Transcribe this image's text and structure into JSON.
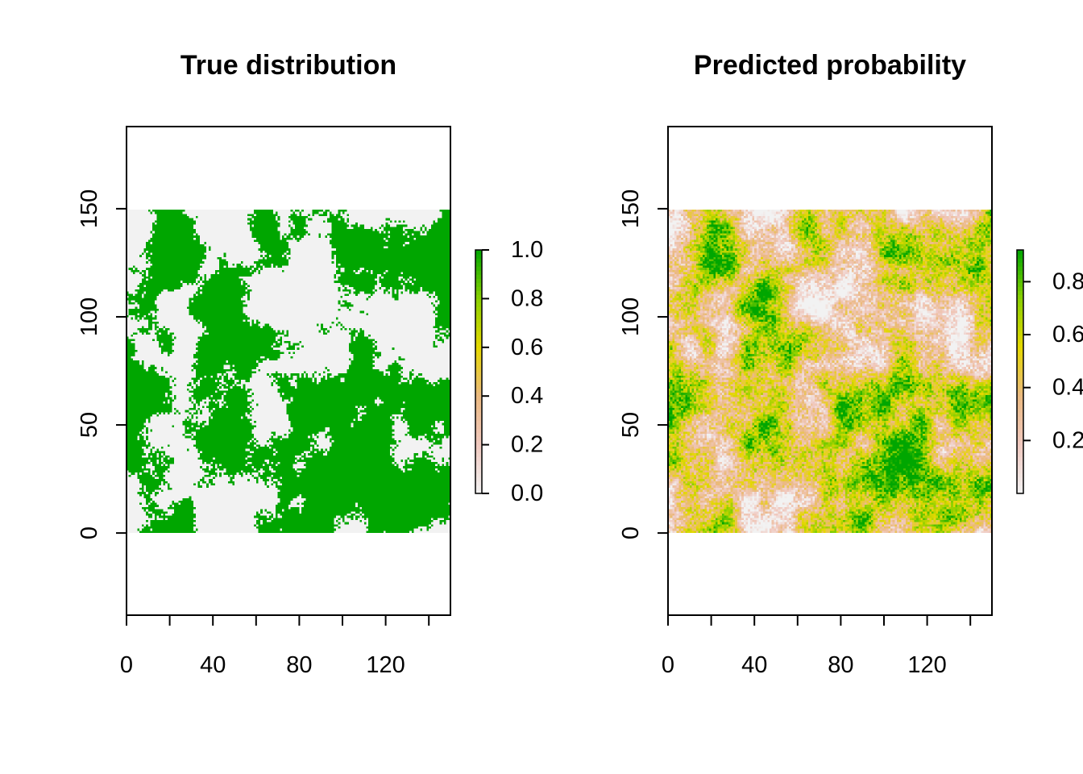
{
  "chart_data": [
    {
      "type": "heatmap",
      "title": "True distribution",
      "xlabel": "",
      "ylabel": "",
      "xlim": [
        0,
        150
      ],
      "ylim": [
        -38,
        188
      ],
      "raster_extent": {
        "x": [
          0,
          150
        ],
        "y": [
          0,
          150
        ]
      },
      "x_ticks": [
        0,
        20,
        40,
        60,
        80,
        100,
        120,
        140
      ],
      "x_tick_labels": [
        "0",
        "40",
        "80",
        "120"
      ],
      "x_tick_label_values": [
        0,
        40,
        80,
        120
      ],
      "y_ticks": [
        0,
        50,
        100,
        150
      ],
      "y_tick_labels": [
        "0",
        "50",
        "100",
        "150"
      ],
      "legend": {
        "placement": "right",
        "range": [
          0,
          1
        ],
        "ticks": [
          0.0,
          0.2,
          0.4,
          0.6,
          0.8,
          1.0
        ],
        "tick_labels": [
          "0.0",
          "0.2",
          "0.4",
          "0.6",
          "0.8",
          "1.0"
        ]
      },
      "values": "binary presence/absence (0 or 1) per cell, ~roughly half of cells present"
    },
    {
      "type": "heatmap",
      "title": "Predicted probability",
      "xlabel": "",
      "ylabel": "",
      "xlim": [
        0,
        150
      ],
      "ylim": [
        -38,
        188
      ],
      "raster_extent": {
        "x": [
          0,
          150
        ],
        "y": [
          0,
          150
        ]
      },
      "x_ticks": [
        0,
        20,
        40,
        60,
        80,
        100,
        120,
        140
      ],
      "x_tick_labels": [
        "0",
        "40",
        "80",
        "120"
      ],
      "x_tick_label_values": [
        0,
        40,
        80,
        120
      ],
      "y_ticks": [
        0,
        50,
        100,
        150
      ],
      "y_tick_labels": [
        "0",
        "50",
        "100",
        "150"
      ],
      "legend": {
        "placement": "right",
        "range": [
          0.0,
          0.92
        ],
        "ticks": [
          0.2,
          0.4,
          0.6,
          0.8
        ],
        "tick_labels": [
          "0.2",
          "0.4",
          "0.6",
          "0.8"
        ]
      },
      "values": "continuous probability per cell, range about 0.0 to 0.9"
    }
  ],
  "colors": {
    "scale": [
      "#f2f2f2",
      "#f0c9c0",
      "#ebb981",
      "#e6d800",
      "#8bd000",
      "#00a600"
    ],
    "frame": "#000000",
    "background": "#ffffff"
  }
}
